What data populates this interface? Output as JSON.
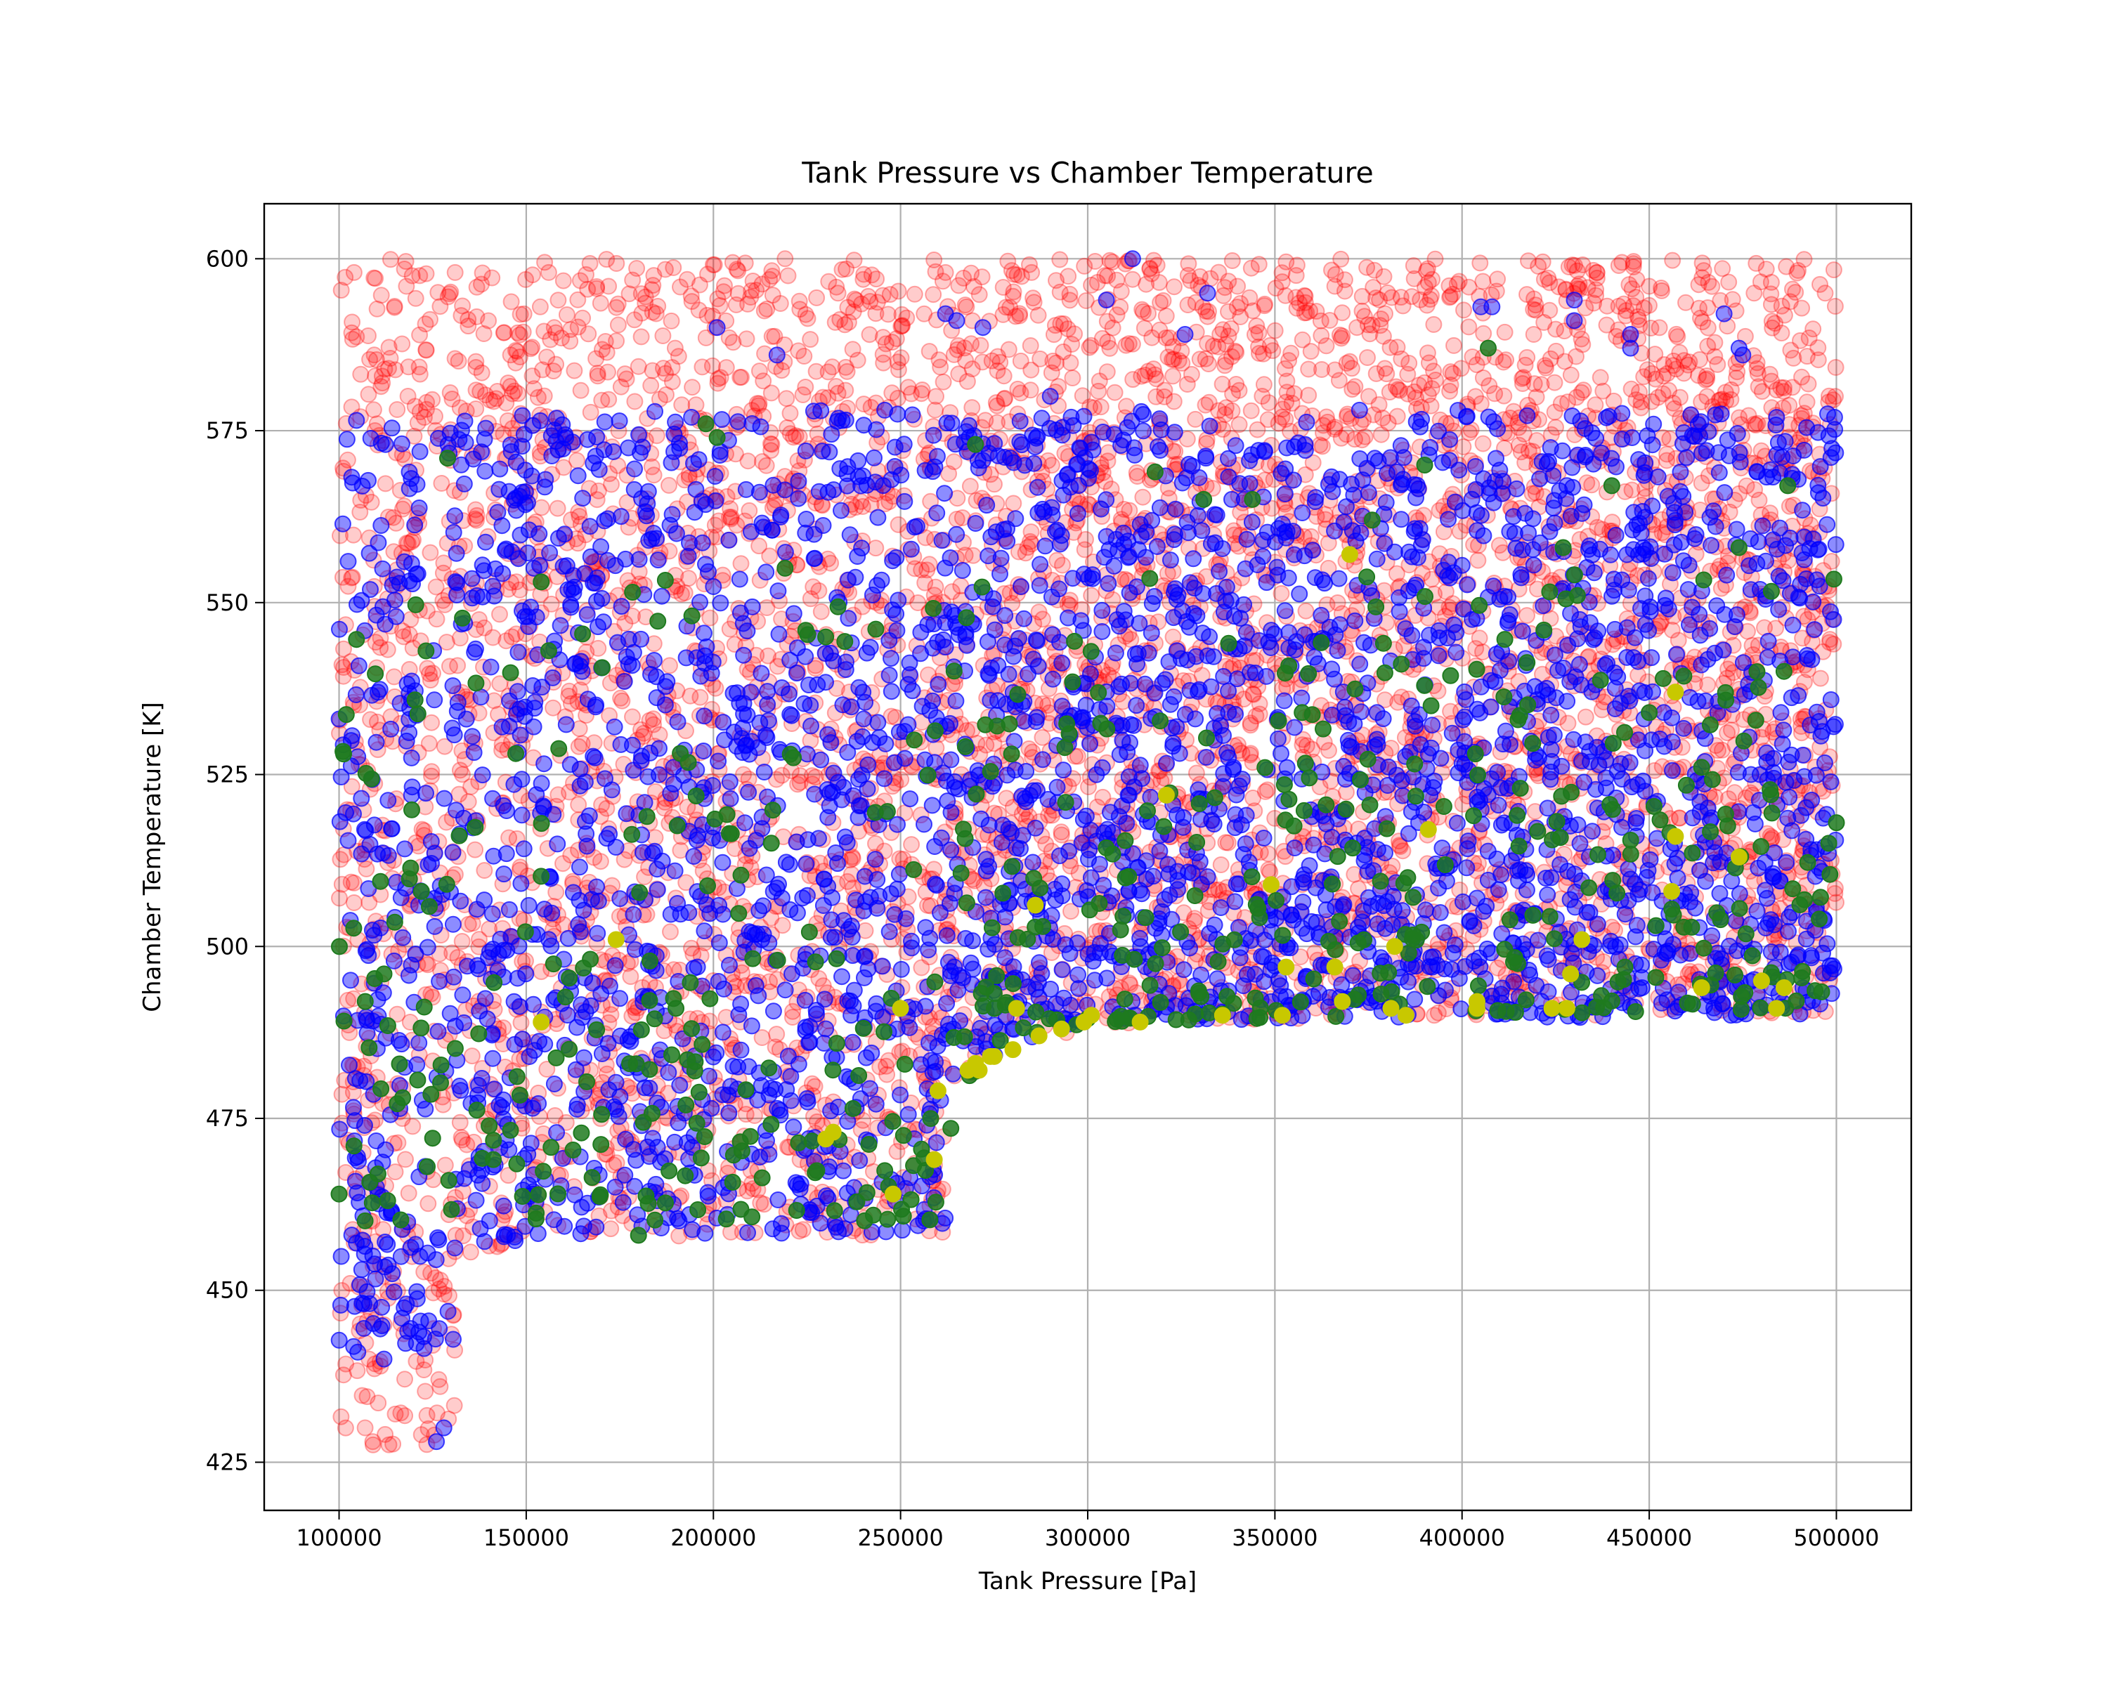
{
  "chart_data": {
    "type": "scatter",
    "title": "Tank Pressure vs Chamber Temperature",
    "xlabel": "Tank Pressure [Pa]",
    "ylabel": "Chamber Temperature [K]",
    "xlim": [
      80000,
      520000
    ],
    "ylim": [
      418,
      608
    ],
    "xticks": [
      100000,
      150000,
      200000,
      250000,
      300000,
      350000,
      400000,
      450000,
      500000
    ],
    "xtick_labels": [
      "100000",
      "150000",
      "200000",
      "250000",
      "300000",
      "350000",
      "400000",
      "450000",
      "500000"
    ],
    "yticks": [
      425,
      450,
      475,
      500,
      525,
      550,
      575,
      600
    ],
    "ytick_labels": [
      "425",
      "450",
      "475",
      "500",
      "525",
      "550",
      "575",
      "600"
    ],
    "grid": true,
    "legend": "none",
    "series": [
      {
        "color": "#ff0000",
        "opacity": 0.2,
        "region": {
          "x_range": [
            100000,
            500000
          ],
          "y_max": 600,
          "lower_boundary": [
            [
              100000,
              427
            ],
            [
              130000,
              427
            ],
            [
              133000,
              450
            ],
            [
              140000,
              456
            ],
            [
              165000,
              457.5
            ],
            [
              262000,
              458
            ],
            [
              262000,
              478
            ],
            [
              268000,
              480
            ],
            [
              275000,
              483
            ],
            [
              290000,
              487
            ],
            [
              320000,
              489
            ],
            [
              400000,
              490
            ],
            [
              500000,
              490
            ]
          ]
        },
        "sample_points": [
          [
            104000,
            598
          ],
          [
            118000,
            596
          ],
          [
            131000,
            598
          ],
          [
            156000,
            598
          ],
          [
            172000,
            596
          ],
          [
            193000,
            597
          ],
          [
            215000,
            597
          ],
          [
            240000,
            597
          ],
          [
            262000,
            598
          ],
          [
            285000,
            598
          ],
          [
            312000,
            597
          ],
          [
            340000,
            596
          ],
          [
            366000,
            596
          ],
          [
            392000,
            597
          ],
          [
            422000,
            597
          ],
          [
            436000,
            598
          ],
          [
            450000,
            596
          ],
          [
            478000,
            595
          ],
          [
            497000,
            595
          ],
          [
            108000,
            440
          ],
          [
            115000,
            432
          ],
          [
            122000,
            429
          ],
          [
            127000,
            436
          ],
          [
            112000,
            445
          ],
          [
            103000,
            451
          ],
          [
            125000,
            442
          ],
          [
            109000,
            428
          ]
        ]
      },
      {
        "color": "#0000ff",
        "opacity": 0.45,
        "region": {
          "x_range": [
            100000,
            500000
          ],
          "y_max": 578,
          "lower_boundary": [
            [
              100000,
              441
            ],
            [
              130000,
              441
            ],
            [
              134000,
              453
            ],
            [
              150000,
              458
            ],
            [
              262000,
              458.5
            ],
            [
              262000,
              479
            ],
            [
              275000,
              484
            ],
            [
              300000,
              489
            ],
            [
              500000,
              490
            ]
          ]
        },
        "sample_points": [
          [
            312000,
            600
          ],
          [
            305000,
            594
          ],
          [
            332000,
            595
          ],
          [
            405000,
            593
          ],
          [
            408000,
            593
          ],
          [
            430000,
            594
          ],
          [
            430000,
            591
          ],
          [
            470000,
            592
          ],
          [
            474000,
            587
          ],
          [
            475000,
            586
          ],
          [
            445000,
            589
          ],
          [
            445000,
            587
          ],
          [
            262000,
            592
          ],
          [
            265000,
            591
          ],
          [
            272000,
            590
          ],
          [
            217000,
            586
          ],
          [
            201000,
            590
          ],
          [
            290000,
            580
          ],
          [
            326000,
            589
          ],
          [
            128000,
            430
          ],
          [
            126000,
            428
          ],
          [
            105000,
            441
          ],
          [
            112000,
            440
          ],
          [
            118000,
            448
          ],
          [
            109000,
            455
          ]
        ]
      },
      {
        "color": "#1e7a1e",
        "opacity": 0.85,
        "region": {
          "x_range": [
            100000,
            500000
          ],
          "y_max": 555,
          "lower_boundary": [
            [
              100000,
              460
            ],
            [
              262000,
              460
            ],
            [
              265000,
              480
            ],
            [
              280000,
              485
            ],
            [
              300000,
              489
            ],
            [
              500000,
              491
            ]
          ]
        },
        "sample_points": [
          [
            407000,
            587
          ],
          [
            129000,
            571
          ],
          [
            198000,
            576
          ],
          [
            201000,
            574
          ],
          [
            270000,
            573
          ],
          [
            318000,
            569
          ],
          [
            390000,
            570
          ],
          [
            440000,
            567
          ],
          [
            487000,
            567
          ],
          [
            331000,
            565
          ],
          [
            344000,
            565
          ],
          [
            376000,
            562
          ],
          [
            474000,
            558
          ],
          [
            427000,
            558
          ],
          [
            154000,
            553
          ],
          [
            156000,
            543
          ],
          [
            107000,
            492
          ],
          [
            112000,
            496
          ],
          [
            100000,
            464
          ],
          [
            117000,
            478
          ],
          [
            122000,
            508
          ],
          [
            180000,
            458
          ],
          [
            500000,
            518
          ],
          [
            486000,
            540
          ],
          [
            450000,
            534
          ],
          [
            230000,
            545
          ],
          [
            190000,
            491
          ]
        ]
      },
      {
        "color": "#c8c800",
        "opacity": 1,
        "points": [
          [
            370000,
            557
          ],
          [
            457000,
            537
          ],
          [
            321000,
            522
          ],
          [
            391000,
            517
          ],
          [
            457000,
            516
          ],
          [
            474000,
            513
          ],
          [
            349000,
            509
          ],
          [
            456000,
            508
          ],
          [
            286000,
            506
          ],
          [
            174000,
            501
          ],
          [
            432000,
            501
          ],
          [
            382000,
            500
          ],
          [
            353000,
            497
          ],
          [
            429000,
            496
          ],
          [
            366000,
            497
          ],
          [
            480000,
            495
          ],
          [
            464000,
            494
          ],
          [
            486000,
            494
          ],
          [
            250000,
            491
          ],
          [
            281000,
            491
          ],
          [
            404000,
            492
          ],
          [
            424000,
            491
          ],
          [
            428000,
            491
          ],
          [
            484000,
            491
          ],
          [
            404000,
            491
          ],
          [
            336000,
            490
          ],
          [
            352000,
            490
          ],
          [
            368000,
            492
          ],
          [
            301000,
            490
          ],
          [
            381000,
            491
          ],
          [
            385000,
            490
          ],
          [
            314000,
            489
          ],
          [
            299000,
            489
          ],
          [
            293000,
            488
          ],
          [
            287000,
            487
          ],
          [
            280000,
            485
          ],
          [
            274000,
            484
          ],
          [
            270000,
            483
          ],
          [
            268000,
            482
          ],
          [
            271000,
            482
          ],
          [
            275000,
            484
          ],
          [
            154000,
            489
          ],
          [
            260000,
            479
          ],
          [
            230000,
            472
          ],
          [
            232000,
            473
          ],
          [
            259000,
            469
          ],
          [
            248000,
            464
          ]
        ]
      }
    ]
  }
}
